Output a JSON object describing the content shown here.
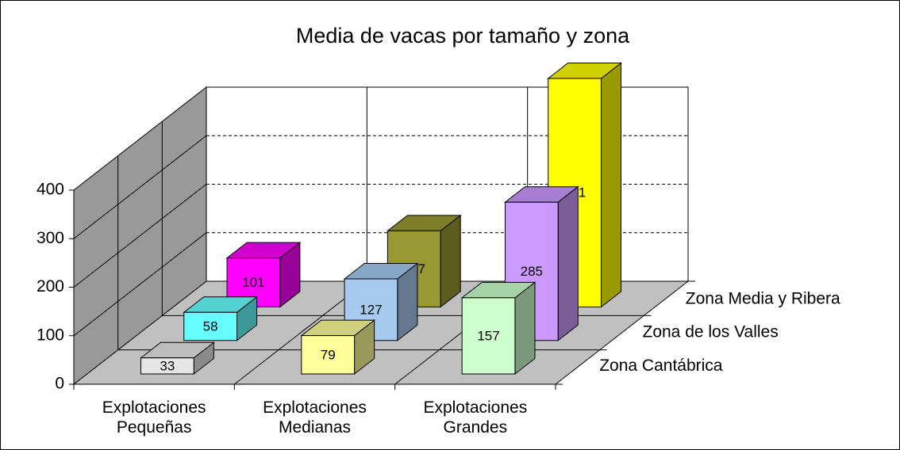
{
  "chart_data": {
    "type": "bar3d",
    "title": "Media de vacas por tamaño y zona",
    "categories": [
      "Explotaciones Pequeñas",
      "Explotaciones Medianas",
      "Explotaciones Grandes"
    ],
    "series": [
      {
        "name": "Zona Cantábrica",
        "colors": [
          "#e6e6e6",
          "#ffff99",
          "#ccffcc"
        ],
        "values": [
          33,
          79,
          157
        ]
      },
      {
        "name": "Zona de los Valles",
        "colors": [
          "#66ffff",
          "#a6caf0",
          "#cc99ff"
        ],
        "values": [
          58,
          127,
          285
        ]
      },
      {
        "name": "Zona Media y Ribera",
        "colors": [
          "#ff00ff",
          "#999933",
          "#ffff00"
        ],
        "values": [
          101,
          157,
          471
        ]
      }
    ],
    "ylim": [
      0,
      400
    ],
    "yticks": [
      0,
      100,
      200,
      300,
      400
    ],
    "grid": true
  }
}
